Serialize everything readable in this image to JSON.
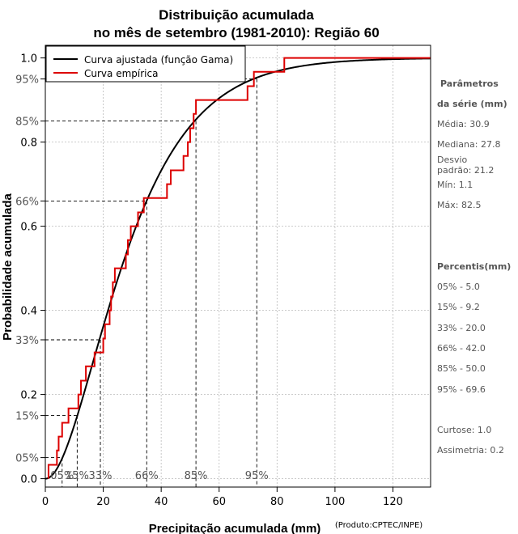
{
  "chart_data": {
    "type": "line",
    "title": [
      "Distribuição acumulada",
      "no mês de setembro (1981-2010): Região 60"
    ],
    "xlabel": "Precipitação acumulada (mm)",
    "ylabel": "Probabilidade acumulada",
    "credit": "(Produto:CPTEC/INPE)",
    "xlim": [
      0,
      133
    ],
    "ylim": [
      -0.02,
      1.03
    ],
    "x_ticks": [
      0,
      20,
      40,
      60,
      80,
      100,
      120
    ],
    "y_ticks": [
      0.0,
      0.2,
      0.4,
      0.6,
      0.8,
      1.0
    ],
    "y_tick_labels": [
      "0.0",
      "0.2",
      "0.4",
      "0.6",
      "0.8",
      "1.0"
    ],
    "grid": true,
    "legend_position": "top-left",
    "series": [
      {
        "name": "Curva ajustada (função Gama)",
        "color": "#000000",
        "shape": 2.13,
        "scale": 14.5,
        "x_max": 133
      },
      {
        "name": "Curva empírica",
        "color": "#dd0000",
        "steps": [
          [
            1.1,
            0.033
          ],
          [
            4.0,
            0.067
          ],
          [
            4.6,
            0.1
          ],
          [
            5.8,
            0.133
          ],
          [
            8.0,
            0.167
          ],
          [
            11.4,
            0.2
          ],
          [
            12.3,
            0.233
          ],
          [
            14.0,
            0.267
          ],
          [
            17.0,
            0.3
          ],
          [
            20.0,
            0.333
          ],
          [
            20.6,
            0.367
          ],
          [
            22.2,
            0.4
          ],
          [
            22.7,
            0.433
          ],
          [
            23.3,
            0.467
          ],
          [
            24.0,
            0.5
          ],
          [
            27.8,
            0.533
          ],
          [
            28.5,
            0.567
          ],
          [
            29.5,
            0.6
          ],
          [
            32.0,
            0.633
          ],
          [
            34.0,
            0.667
          ],
          [
            42.0,
            0.7
          ],
          [
            43.3,
            0.733
          ],
          [
            47.7,
            0.767
          ],
          [
            49.2,
            0.8
          ],
          [
            50.0,
            0.833
          ],
          [
            51.2,
            0.867
          ],
          [
            52.0,
            0.9
          ],
          [
            69.8,
            0.933
          ],
          [
            72.0,
            0.967
          ],
          [
            82.5,
            1.0
          ]
        ],
        "x_end": 133
      }
    ],
    "percentiles": [
      {
        "label": "05%",
        "p": 0.05,
        "x": 5.0
      },
      {
        "label": "15%",
        "p": 0.15,
        "x": 9.2
      },
      {
        "label": "33%",
        "p": 0.33,
        "x": 20.0
      },
      {
        "label": "66%",
        "p": 0.66,
        "x": 42.0
      },
      {
        "label": "85%",
        "p": 0.85,
        "x": 50.0
      },
      {
        "label": "95%",
        "p": 0.95,
        "x": 69.6
      }
    ],
    "percentile_drop_lines": [
      {
        "label": "05%",
        "p": 0.05,
        "x": 5.8
      },
      {
        "label": "15%",
        "p": 0.15,
        "x": 11.0
      },
      {
        "label": "33%",
        "p": 0.33,
        "x": 19.0
      },
      {
        "label": "66%",
        "p": 0.66,
        "x": 35.0
      },
      {
        "label": "85%",
        "p": 0.85,
        "x": 52.0
      },
      {
        "label": "95%",
        "p": 0.95,
        "x": 73.0
      }
    ]
  },
  "side_panel": {
    "params_title_1": "Parâmetros",
    "params_title_2": "da série (mm)",
    "media": "Média: 30.9",
    "mediana": "Mediana: 27.8",
    "desvio_1": "Desvio",
    "desvio_2": "padrão: 21.2",
    "min": "Mín: 1.1",
    "max": "Máx: 82.5",
    "percentis_title": "Percentis(mm)",
    "percentis": [
      "05% - 5.0",
      "15% - 9.2",
      "33% - 20.0",
      "66% - 42.0",
      "85% - 50.0",
      "95% - 69.6"
    ],
    "curtose": "Curtose: 1.0",
    "assimetria": "Assimetria: 0.2"
  }
}
